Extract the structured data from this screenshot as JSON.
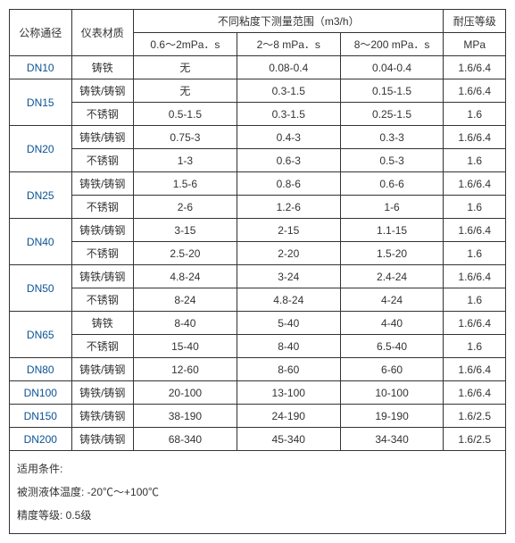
{
  "headers": {
    "nominal": "公称通径",
    "material": "仪表材质",
    "rangeGroup": "不同粘度下测量范围（m3/h）",
    "pressure": "耐压等级",
    "range1": "0.6～2mPa．s",
    "range2": "2～8 mPa．s",
    "range3": "8～200 mPa．s",
    "pressureUnit": "MPa"
  },
  "rows": [
    {
      "nominal": "DN10",
      "material": "铸铁",
      "r1": "无",
      "r2": "0.08-0.4",
      "r3": "0.04-0.4",
      "p": "1.6/6.4",
      "rowspan": 1
    },
    {
      "nominal": "DN15",
      "material": "铸铁/铸钢",
      "r1": "无",
      "r2": "0.3-1.5",
      "r3": "0.15-1.5",
      "p": "1.6/6.4",
      "rowspan": 2
    },
    {
      "nominal": "",
      "material": "不锈钢",
      "r1": "0.5-1.5",
      "r2": "0.3-1.5",
      "r3": "0.25-1.5",
      "p": "1.6",
      "rowspan": 0
    },
    {
      "nominal": "DN20",
      "material": "铸铁/铸钢",
      "r1": "0.75-3",
      "r2": "0.4-3",
      "r3": "0.3-3",
      "p": "1.6/6.4",
      "rowspan": 2
    },
    {
      "nominal": "",
      "material": "不锈钢",
      "r1": "1-3",
      "r2": "0.6-3",
      "r3": "0.5-3",
      "p": "1.6",
      "rowspan": 0
    },
    {
      "nominal": "DN25",
      "material": "铸铁/铸钢",
      "r1": "1.5-6",
      "r2": "0.8-6",
      "r3": "0.6-6",
      "p": "1.6/6.4",
      "rowspan": 2
    },
    {
      "nominal": "",
      "material": "不锈钢",
      "r1": "2-6",
      "r2": "1.2-6",
      "r3": "1-6",
      "p": "1.6",
      "rowspan": 0
    },
    {
      "nominal": "DN40",
      "material": "铸铁/铸钢",
      "r1": "3-15",
      "r2": "2-15",
      "r3": "1.1-15",
      "p": "1.6/6.4",
      "rowspan": 2
    },
    {
      "nominal": "",
      "material": "不锈钢",
      "r1": "2.5-20",
      "r2": "2-20",
      "r3": "1.5-20",
      "p": "1.6",
      "rowspan": 0
    },
    {
      "nominal": "DN50",
      "material": "铸铁/铸钢",
      "r1": "4.8-24",
      "r2": "3-24",
      "r3": "2.4-24",
      "p": "1.6/6.4",
      "rowspan": 2
    },
    {
      "nominal": "",
      "material": "不锈钢",
      "r1": "8-24",
      "r2": "4.8-24",
      "r3": "4-24",
      "p": "1.6",
      "rowspan": 0
    },
    {
      "nominal": "DN65",
      "material": "铸铁",
      "r1": "8-40",
      "r2": "5-40",
      "r3": "4-40",
      "p": "1.6/6.4",
      "rowspan": 2
    },
    {
      "nominal": "",
      "material": "不锈钢",
      "r1": "15-40",
      "r2": "8-40",
      "r3": "6.5-40",
      "p": "1.6",
      "rowspan": 0
    },
    {
      "nominal": "DN80",
      "material": "铸铁/铸钢",
      "r1": "12-60",
      "r2": "8-60",
      "r3": "6-60",
      "p": "1.6/6.4",
      "rowspan": 1
    },
    {
      "nominal": "DN100",
      "material": "铸铁/铸钢",
      "r1": "20-100",
      "r2": "13-100",
      "r3": "10-100",
      "p": "1.6/6.4",
      "rowspan": 1
    },
    {
      "nominal": "DN150",
      "material": "铸铁/铸钢",
      "r1": "38-190",
      "r2": "24-190",
      "r3": "19-190",
      "p": "1.6/2.5",
      "rowspan": 1
    },
    {
      "nominal": "DN200",
      "material": "铸铁/铸钢",
      "r1": "68-340",
      "r2": "45-340",
      "r3": "34-340",
      "p": "1.6/2.5",
      "rowspan": 1
    }
  ],
  "notes": {
    "line1": "适用条件:",
    "line2": "被测液体温度: -20℃～+100℃",
    "line3": "精度等级: 0.5级"
  }
}
